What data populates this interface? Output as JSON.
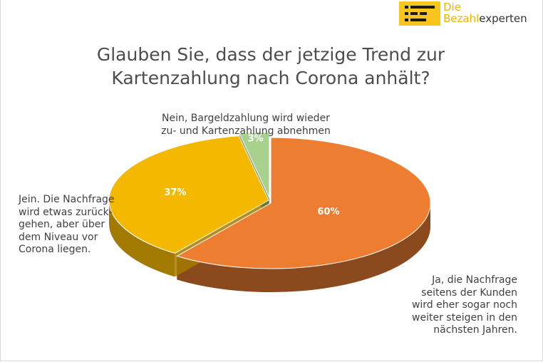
{
  "logo": {
    "line1": "Die",
    "line2_highlight": "Bezahl",
    "line2_rest": "experten",
    "icon": "bezahlexperten-logo-icon",
    "brand_color": "#f8c51c"
  },
  "chart_data": {
    "type": "pie",
    "style": "3d-exploded",
    "title": "Glauben Sie, dass der jetzige Trend zur Kartenzahlung nach Corona anhält?",
    "slices": [
      {
        "label": "Ja, die Nachfrage seitens der Kunden wird eher sogar noch weiter steigen in den nächsten Jahren.",
        "value": 60,
        "display": "60%",
        "color": "#ed7d31",
        "side_color": "#8a4a1e"
      },
      {
        "label": "Jein. Die Nachfrage wird etwas zurückgehen, aber über dem Niveau vor Corona liegen.",
        "value": 37,
        "display": "37%",
        "color": "#f5b800",
        "side_color": "#a37a00"
      },
      {
        "label": "Nein, Bargeldzahlung wird wieder zu- und Kartenzahlung abnehmen",
        "value": 3,
        "display": "3%",
        "color": "#a9d18e",
        "side_color": "#5a7a45"
      }
    ],
    "label_lines": {
      "ja": [
        "Ja, die Nachfrage",
        "seitens der Kunden",
        "wird eher sogar noch",
        "weiter steigen in den",
        "nächsten Jahren."
      ],
      "jein": [
        "Jein. Die Nachfrage",
        "wird etwas zurück-",
        "gehen, aber über",
        "dem Niveau vor",
        "Corona liegen."
      ],
      "nein": [
        "Nein, Bargeldzahlung wird wieder",
        "zu- und Kartenzahlung abnehmen"
      ]
    }
  }
}
